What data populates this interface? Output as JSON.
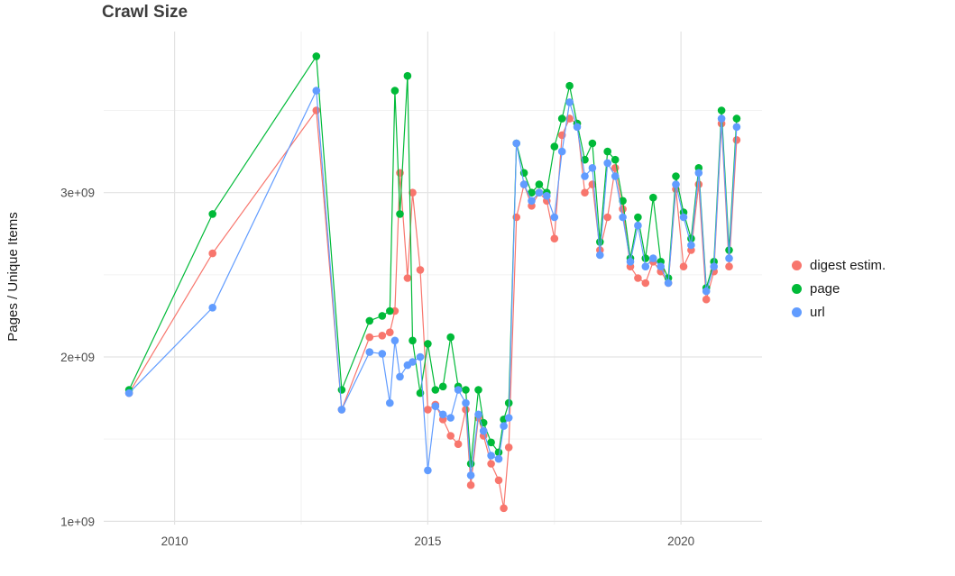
{
  "title": "Crawl Size",
  "chart_data": {
    "type": "line",
    "title": "Crawl Size",
    "xlabel": "",
    "ylabel": "Pages / Unique Items",
    "xlim": [
      2008.6,
      2021.6
    ],
    "ylim": [
      980000000.0,
      3980000000.0
    ],
    "grid": true,
    "legend_position": "right",
    "xticks": [
      {
        "value": 2010,
        "label": "2010"
      },
      {
        "value": 2015,
        "label": "2015"
      },
      {
        "value": 2020,
        "label": "2020"
      }
    ],
    "yticks": [
      {
        "value": 1000000000.0,
        "label": "1e+09"
      },
      {
        "value": 2000000000.0,
        "label": "2e+09"
      },
      {
        "value": 3000000000.0,
        "label": "3e+09"
      }
    ],
    "xminor": [
      2012.5,
      2017.5
    ],
    "yminor": [
      1500000000.0,
      2500000000.0,
      3500000000.0
    ],
    "x": [
      2009.1,
      2010.75,
      2012.8,
      2013.3,
      2013.85,
      2014.1,
      2014.25,
      2014.35,
      2014.45,
      2014.6,
      2014.7,
      2014.85,
      2015.0,
      2015.15,
      2015.3,
      2015.45,
      2015.6,
      2015.75,
      2015.85,
      2016.0,
      2016.1,
      2016.25,
      2016.4,
      2016.5,
      2016.6,
      2016.75,
      2016.9,
      2017.05,
      2017.2,
      2017.35,
      2017.5,
      2017.65,
      2017.8,
      2017.95,
      2018.1,
      2018.25,
      2018.4,
      2018.55,
      2018.7,
      2018.85,
      2019.0,
      2019.15,
      2019.3,
      2019.45,
      2019.6,
      2019.75,
      2019.9,
      2020.05,
      2020.2,
      2020.35,
      2020.5,
      2020.65,
      2020.8,
      2020.95,
      2021.1
    ],
    "series": [
      {
        "name": "digest estim.",
        "color": "#F8766D",
        "values": [
          1780000000.0,
          2630000000.0,
          3500000000.0,
          1680000000.0,
          2120000000.0,
          2130000000.0,
          2150000000.0,
          2280000000.0,
          3120000000.0,
          2480000000.0,
          3000000000.0,
          2530000000.0,
          1680000000.0,
          1710000000.0,
          1620000000.0,
          1520000000.0,
          1470000000.0,
          1680000000.0,
          1220000000.0,
          1630000000.0,
          1520000000.0,
          1350000000.0,
          1250000000.0,
          1080000000.0,
          1450000000.0,
          2850000000.0,
          3050000000.0,
          2920000000.0,
          3000000000.0,
          2950000000.0,
          2720000000.0,
          3350000000.0,
          3450000000.0,
          3420000000.0,
          3000000000.0,
          3050000000.0,
          2650000000.0,
          2850000000.0,
          3150000000.0,
          2900000000.0,
          2550000000.0,
          2480000000.0,
          2450000000.0,
          2580000000.0,
          2520000000.0,
          2450000000.0,
          3020000000.0,
          2550000000.0,
          2650000000.0,
          3050000000.0,
          2350000000.0,
          2520000000.0,
          3420000000.0,
          2550000000.0,
          3320000000.0
        ]
      },
      {
        "name": "page",
        "color": "#00BA38",
        "values": [
          1800000000.0,
          2870000000.0,
          3830000000.0,
          1800000000.0,
          2220000000.0,
          2250000000.0,
          2280000000.0,
          3620000000.0,
          2870000000.0,
          3710000000.0,
          2100000000.0,
          1780000000.0,
          2080000000.0,
          1800000000.0,
          1820000000.0,
          2120000000.0,
          1820000000.0,
          1800000000.0,
          1350000000.0,
          1800000000.0,
          1600000000.0,
          1480000000.0,
          1420000000.0,
          1620000000.0,
          1720000000.0,
          3300000000.0,
          3120000000.0,
          3000000000.0,
          3050000000.0,
          3000000000.0,
          3280000000.0,
          3450000000.0,
          3650000000.0,
          3420000000.0,
          3200000000.0,
          3300000000.0,
          2700000000.0,
          3250000000.0,
          3200000000.0,
          2950000000.0,
          2600000000.0,
          2850000000.0,
          2600000000.0,
          2970000000.0,
          2580000000.0,
          2480000000.0,
          3100000000.0,
          2880000000.0,
          2720000000.0,
          3150000000.0,
          2420000000.0,
          2580000000.0,
          3500000000.0,
          2650000000.0,
          3450000000.0
        ]
      },
      {
        "name": "url",
        "color": "#619CFF",
        "values": [
          1780000000.0,
          2300000000.0,
          3620000000.0,
          1680000000.0,
          2030000000.0,
          2020000000.0,
          1720000000.0,
          2100000000.0,
          1880000000.0,
          1950000000.0,
          1970000000.0,
          2000000000.0,
          1310000000.0,
          1700000000.0,
          1650000000.0,
          1630000000.0,
          1800000000.0,
          1720000000.0,
          1280000000.0,
          1650000000.0,
          1550000000.0,
          1400000000.0,
          1380000000.0,
          1580000000.0,
          1630000000.0,
          3300000000.0,
          3050000000.0,
          2950000000.0,
          3000000000.0,
          2980000000.0,
          2850000000.0,
          3250000000.0,
          3550000000.0,
          3400000000.0,
          3100000000.0,
          3150000000.0,
          2620000000.0,
          3180000000.0,
          3100000000.0,
          2850000000.0,
          2580000000.0,
          2800000000.0,
          2550000000.0,
          2600000000.0,
          2550000000.0,
          2450000000.0,
          3050000000.0,
          2850000000.0,
          2680000000.0,
          3120000000.0,
          2400000000.0,
          2550000000.0,
          3450000000.0,
          2600000000.0,
          3400000000.0
        ]
      }
    ],
    "style": {
      "grid_major_color": "#e3e3e3",
      "grid_minor_color": "#f2f2f2",
      "tick_label_color": "#4d4d4d",
      "title_color": "#3d3d3d",
      "point_radius": 4.3
    }
  }
}
